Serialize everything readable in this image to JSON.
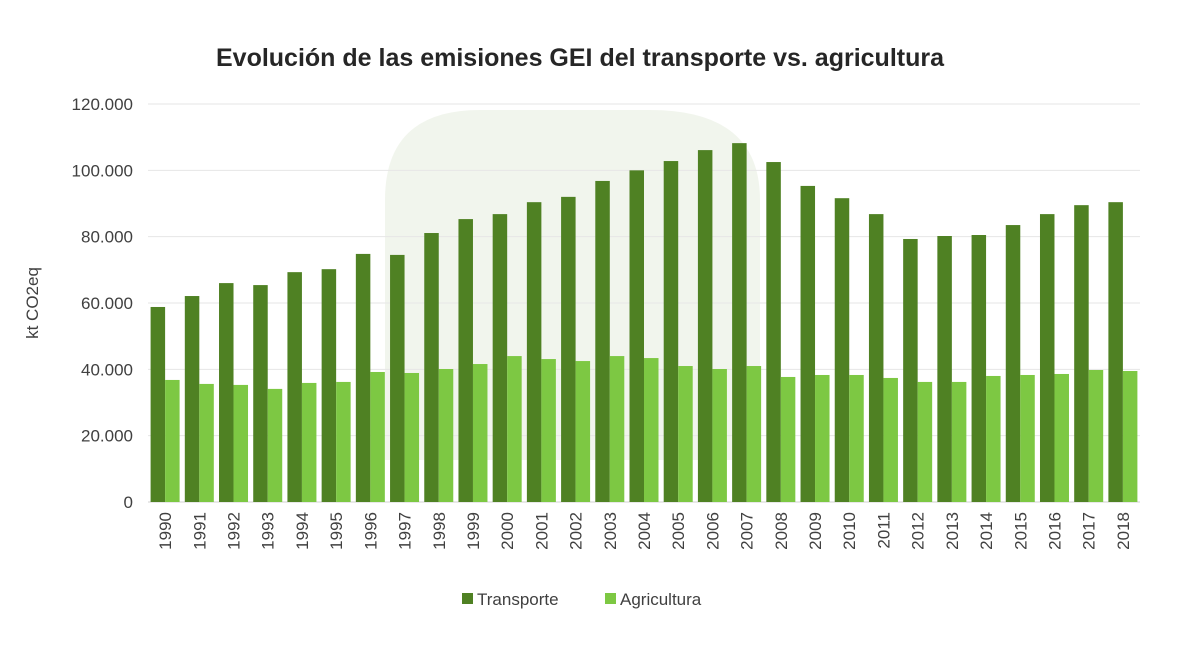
{
  "chart_data": {
    "type": "bar",
    "title": "Evolución de las emisiones GEI del transporte vs. agricultura",
    "xlabel": "",
    "ylabel": "kt CO2eq",
    "ylim": [
      0,
      120000
    ],
    "yticks": [
      0,
      20000,
      40000,
      60000,
      80000,
      100000,
      120000
    ],
    "ytick_labels": [
      "0",
      "20.000",
      "40.000",
      "60.000",
      "80.000",
      "100.000",
      "120.000"
    ],
    "grid": true,
    "legend_position": "bottom",
    "categories": [
      "1990",
      "1991",
      "1992",
      "1993",
      "1994",
      "1995",
      "1996",
      "1997",
      "1998",
      "1999",
      "2000",
      "2001",
      "2002",
      "2003",
      "2004",
      "2005",
      "2006",
      "2007",
      "2008",
      "2009",
      "2010",
      "2011",
      "2012",
      "2013",
      "2014",
      "2015",
      "2016",
      "2017",
      "2018"
    ],
    "series": [
      {
        "name": "Transporte",
        "color": "#4f8123",
        "values": [
          58800,
          62100,
          66000,
          65400,
          69300,
          70200,
          74800,
          74500,
          81100,
          85300,
          86800,
          90400,
          92000,
          96800,
          100000,
          102800,
          106100,
          108200,
          102500,
          95300,
          91600,
          86800,
          79300,
          80200,
          80500,
          83500,
          86800,
          89500,
          90400
        ]
      },
      {
        "name": "Agricultura",
        "color": "#7dc843",
        "values": [
          36800,
          35600,
          35300,
          34100,
          35900,
          36200,
          39200,
          38900,
          40100,
          41600,
          44000,
          43100,
          42500,
          44000,
          43400,
          41000,
          40100,
          41000,
          37700,
          38300,
          38300,
          37400,
          36200,
          36200,
          38000,
          38300,
          38600,
          39800,
          39500
        ]
      }
    ]
  }
}
